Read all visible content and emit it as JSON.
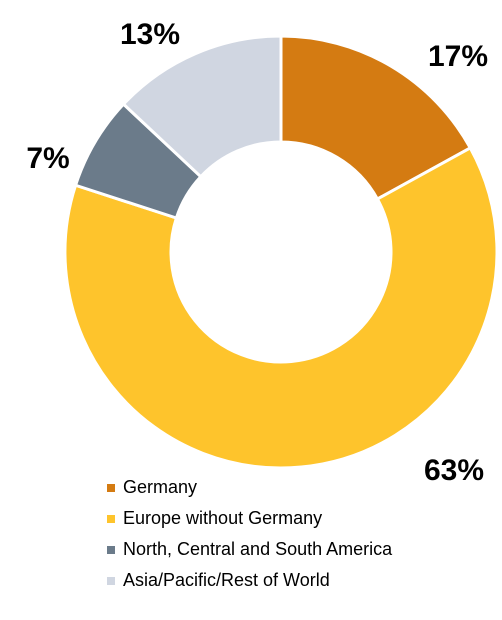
{
  "chart_data": {
    "type": "pie",
    "donut": true,
    "title": "",
    "legend_position": "bottom",
    "slices": [
      {
        "label": "Germany",
        "value": 17,
        "display": "17%",
        "color": "#D47B12"
      },
      {
        "label": "Europe without Germany",
        "value": 63,
        "display": "63%",
        "color": "#FEC42C"
      },
      {
        "label": "North, Central and South America",
        "value": 7,
        "display": "7%",
        "color": "#6B7B8A"
      },
      {
        "label": "Asia/Pacific/Rest of World",
        "value": 13,
        "display": "13%",
        "color": "#D0D6E1"
      }
    ]
  }
}
